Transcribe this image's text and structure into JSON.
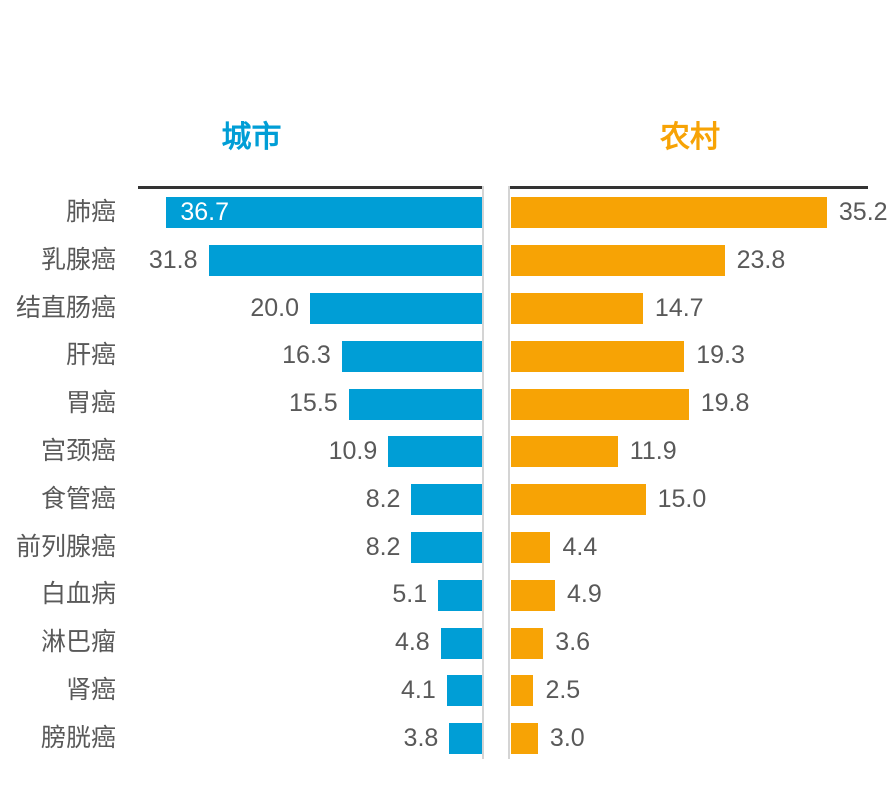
{
  "titles": {
    "left": {
      "label": "城市",
      "color": "#009ED6"
    },
    "right": {
      "label": "农村",
      "color": "#F7A305"
    }
  },
  "chart_data": {
    "type": "bar",
    "subtype": "diverging-tornado-horizontal",
    "title_left": "城市",
    "title_right": "农村",
    "categories": [
      "肺癌",
      "乳腺癌",
      "结直肠癌",
      "肝癌",
      "胃癌",
      "宫颈癌",
      "食管癌",
      "前列腺癌",
      "白血病",
      "淋巴瘤",
      "肾癌",
      "膀胱癌"
    ],
    "series": [
      {
        "name": "城市",
        "side": "left",
        "color": "#009ED6",
        "values": [
          36.7,
          31.8,
          20.0,
          16.3,
          15.5,
          10.9,
          8.2,
          8.2,
          5.1,
          4.8,
          4.1,
          3.8
        ]
      },
      {
        "name": "农村",
        "side": "right",
        "color": "#F7A305",
        "values": [
          35.2,
          23.8,
          14.7,
          19.3,
          19.8,
          11.9,
          15.0,
          4.4,
          4.9,
          3.6,
          2.5,
          3.0
        ]
      }
    ],
    "xlim": [
      0,
      40
    ],
    "value_format": "one-decimal",
    "value_label_color": "#595959",
    "category_label_color": "#595959",
    "inside_label": {
      "row": 0,
      "side": "left",
      "color": "#ffffff"
    },
    "axis_line_color": "#333333",
    "center_baseline_color": "#d4d4d4",
    "grid": false,
    "legend": "none"
  }
}
